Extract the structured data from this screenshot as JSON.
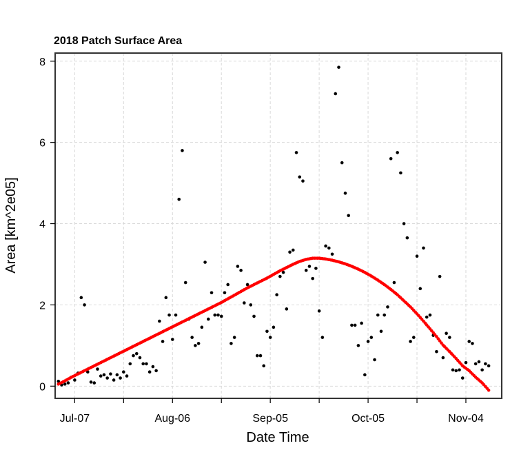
{
  "chart_data": {
    "type": "scatter",
    "title": "2018 Patch Surface Area",
    "xlabel": "Date Time",
    "ylabel": "Area [km^2e05]",
    "x_ticks": [
      "2018-07-07",
      "2018-08-06",
      "2018-09-05",
      "2018-10-05",
      "2018-11-04"
    ],
    "x_tick_labels": [
      "Jul-07",
      "Aug-06",
      "Sep-05",
      "Oct-05",
      "Nov-04"
    ],
    "y_ticks": [
      0,
      2,
      4,
      6,
      8
    ],
    "xlim": [
      "2018-07-01",
      "2018-11-15"
    ],
    "ylim": [
      -0.3,
      8.2
    ],
    "grid": true,
    "colors": {
      "observed": "#000000",
      "fit": "#ff0000"
    },
    "series": [
      {
        "marker": "point",
        "x": [
          "2018-07-02",
          "2018-07-03",
          "2018-07-04",
          "2018-07-05",
          "2018-07-06",
          "2018-07-07",
          "2018-07-08",
          "2018-07-09",
          "2018-07-10",
          "2018-07-11",
          "2018-07-12",
          "2018-07-13",
          "2018-07-14",
          "2018-07-15",
          "2018-07-16",
          "2018-07-17",
          "2018-07-18",
          "2018-07-19",
          "2018-07-20",
          "2018-07-21",
          "2018-07-22",
          "2018-07-23",
          "2018-07-24",
          "2018-07-25",
          "2018-07-26",
          "2018-07-27",
          "2018-07-28",
          "2018-07-29",
          "2018-07-30",
          "2018-07-31",
          "2018-08-01",
          "2018-08-02",
          "2018-08-03",
          "2018-08-04",
          "2018-08-05",
          "2018-08-06",
          "2018-08-07",
          "2018-08-08",
          "2018-08-09",
          "2018-08-10",
          "2018-08-11",
          "2018-08-12",
          "2018-08-13",
          "2018-08-14",
          "2018-08-15",
          "2018-08-16",
          "2018-08-17",
          "2018-08-18",
          "2018-08-19",
          "2018-08-20",
          "2018-08-21",
          "2018-08-22",
          "2018-08-23",
          "2018-08-24",
          "2018-08-25",
          "2018-08-26",
          "2018-08-27",
          "2018-08-28",
          "2018-08-29",
          "2018-08-30",
          "2018-08-31",
          "2018-09-01",
          "2018-09-02",
          "2018-09-03",
          "2018-09-04",
          "2018-09-05",
          "2018-09-06",
          "2018-09-07",
          "2018-09-08",
          "2018-09-09",
          "2018-09-10",
          "2018-09-11",
          "2018-09-12",
          "2018-09-13",
          "2018-09-14",
          "2018-09-15",
          "2018-09-16",
          "2018-09-17",
          "2018-09-18",
          "2018-09-19",
          "2018-09-20",
          "2018-09-21",
          "2018-09-22",
          "2018-09-23",
          "2018-09-24",
          "2018-09-25",
          "2018-09-26",
          "2018-09-27",
          "2018-09-28",
          "2018-09-29",
          "2018-09-30",
          "2018-10-01",
          "2018-10-02",
          "2018-10-03",
          "2018-10-04",
          "2018-10-05",
          "2018-10-06",
          "2018-10-07",
          "2018-10-08",
          "2018-10-09",
          "2018-10-10",
          "2018-10-11",
          "2018-10-12",
          "2018-10-13",
          "2018-10-14",
          "2018-10-15",
          "2018-10-16",
          "2018-10-17",
          "2018-10-18",
          "2018-10-19",
          "2018-10-20",
          "2018-10-21",
          "2018-10-22",
          "2018-10-23",
          "2018-10-24",
          "2018-10-25",
          "2018-10-26",
          "2018-10-27",
          "2018-10-28",
          "2018-10-29",
          "2018-10-30",
          "2018-10-31",
          "2018-11-01",
          "2018-11-02",
          "2018-11-03",
          "2018-11-04",
          "2018-11-05",
          "2018-11-06",
          "2018-11-07",
          "2018-11-08",
          "2018-11-09",
          "2018-11-10",
          "2018-11-11"
        ],
        "y": [
          0.12,
          0.03,
          0.05,
          0.08,
          0.22,
          0.15,
          0.32,
          2.18,
          2.0,
          0.35,
          0.1,
          0.08,
          0.42,
          0.25,
          0.28,
          0.2,
          0.3,
          0.15,
          0.28,
          0.2,
          0.35,
          0.25,
          0.55,
          0.75,
          0.8,
          0.7,
          0.55,
          0.55,
          0.35,
          0.48,
          0.38,
          1.6,
          1.1,
          2.18,
          1.75,
          1.15,
          1.75,
          4.6,
          5.8,
          2.55,
          1.65,
          1.2,
          1.0,
          1.05,
          1.45,
          3.05,
          1.65,
          2.3,
          1.75,
          1.75,
          1.72,
          2.3,
          2.5,
          1.05,
          1.2,
          2.95,
          2.85,
          2.05,
          2.5,
          2.0,
          1.72,
          0.75,
          0.75,
          0.5,
          1.35,
          1.2,
          1.45,
          2.25,
          2.7,
          2.8,
          1.9,
          3.3,
          3.35,
          5.75,
          5.15,
          5.05,
          2.85,
          2.95,
          2.65,
          2.9,
          1.85,
          1.2,
          3.45,
          3.4,
          3.25,
          7.2,
          7.85,
          5.5,
          4.75,
          4.2,
          1.5,
          1.5,
          1.0,
          1.55,
          0.28,
          1.1,
          1.2,
          0.65,
          1.75,
          1.35,
          1.75,
          1.95,
          5.6,
          2.55,
          5.75,
          5.25,
          4.0,
          3.65,
          1.1,
          1.2,
          3.2,
          2.4,
          3.4,
          1.7,
          1.75,
          1.25,
          0.85,
          2.7,
          0.7,
          1.3,
          1.2,
          0.4,
          0.38,
          0.4,
          0.2,
          0.58,
          1.1,
          1.05,
          0.55,
          0.6,
          0.4,
          0.55,
          0.5
        ]
      },
      {
        "marker": "point",
        "x": [
          "2018-07-02",
          "2018-07-04",
          "2018-07-06",
          "2018-07-08",
          "2018-07-10",
          "2018-07-12",
          "2018-07-14",
          "2018-07-16",
          "2018-07-18",
          "2018-07-20",
          "2018-07-22",
          "2018-07-24",
          "2018-07-26",
          "2018-07-28",
          "2018-07-30",
          "2018-08-01",
          "2018-08-03",
          "2018-08-05",
          "2018-08-07",
          "2018-08-09",
          "2018-08-11",
          "2018-08-13",
          "2018-08-15",
          "2018-08-17",
          "2018-08-19",
          "2018-08-21",
          "2018-08-23",
          "2018-08-25",
          "2018-08-27",
          "2018-08-29",
          "2018-08-31",
          "2018-09-02",
          "2018-09-04",
          "2018-09-06",
          "2018-09-08",
          "2018-09-10",
          "2018-09-12",
          "2018-09-14",
          "2018-09-16",
          "2018-09-18",
          "2018-09-20",
          "2018-09-22",
          "2018-09-24",
          "2018-09-26",
          "2018-09-28",
          "2018-09-30",
          "2018-10-02",
          "2018-10-04",
          "2018-10-06",
          "2018-10-08",
          "2018-10-10",
          "2018-10-12",
          "2018-10-14",
          "2018-10-16",
          "2018-10-18",
          "2018-10-20",
          "2018-10-22",
          "2018-10-24",
          "2018-10-26",
          "2018-10-28",
          "2018-10-30",
          "2018-11-01",
          "2018-11-03",
          "2018-11-05",
          "2018-11-07",
          "2018-11-09",
          "2018-11-11"
        ],
        "y": [
          0.05,
          0.13,
          0.22,
          0.3,
          0.38,
          0.46,
          0.54,
          0.62,
          0.7,
          0.78,
          0.86,
          0.94,
          1.02,
          1.1,
          1.18,
          1.26,
          1.34,
          1.42,
          1.5,
          1.58,
          1.66,
          1.74,
          1.82,
          1.9,
          1.98,
          2.06,
          2.15,
          2.24,
          2.33,
          2.42,
          2.5,
          2.58,
          2.66,
          2.75,
          2.84,
          2.92,
          3.0,
          3.07,
          3.12,
          3.15,
          3.15,
          3.13,
          3.1,
          3.06,
          3.01,
          2.95,
          2.88,
          2.8,
          2.71,
          2.61,
          2.5,
          2.38,
          2.25,
          2.1,
          1.95,
          1.78,
          1.6,
          1.41,
          1.22,
          1.01,
          0.85,
          0.68,
          0.5,
          0.38,
          0.22,
          0.08,
          -0.1
        ]
      }
    ]
  }
}
